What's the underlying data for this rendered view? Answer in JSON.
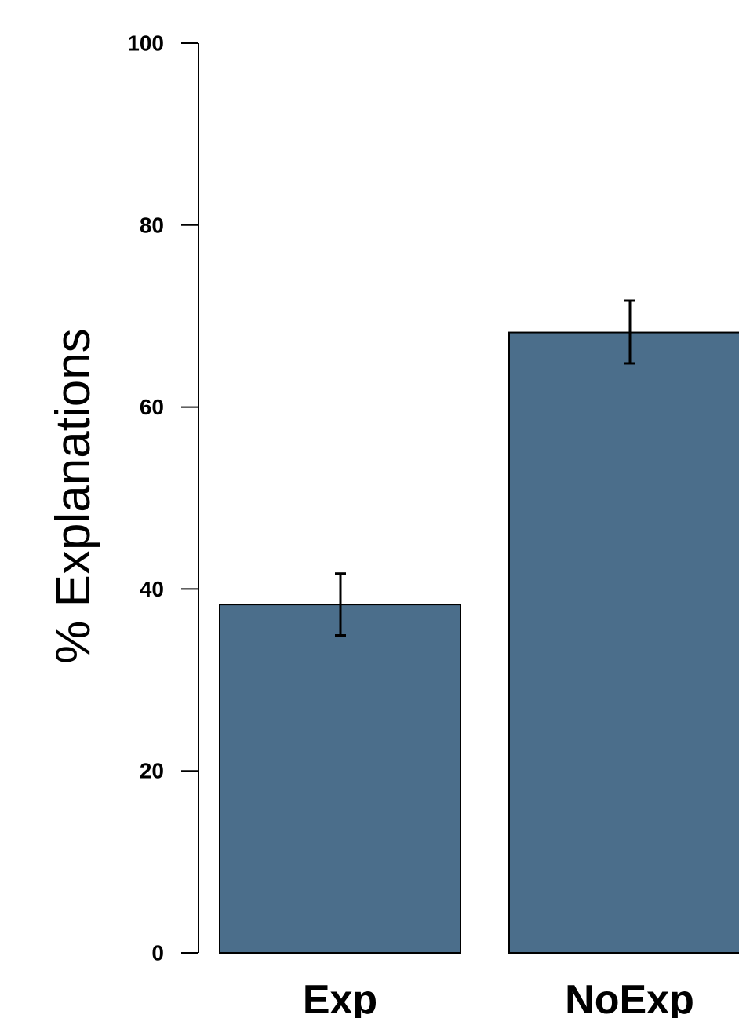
{
  "chart_data": {
    "type": "bar",
    "title": "",
    "xlabel": "",
    "ylabel": "% Explanations",
    "categories": [
      "Exp",
      "NoExp"
    ],
    "values": [
      38.3,
      68.2
    ],
    "error_bars": [
      {
        "low": 34.9,
        "high": 41.7
      },
      {
        "low": 64.8,
        "high": 71.7
      }
    ],
    "ylim": [
      0,
      100
    ],
    "yticks": [
      0,
      20,
      40,
      60,
      80,
      100
    ],
    "ytick_labels": [
      "0",
      "20",
      "40",
      "60",
      "80",
      "100"
    ],
    "bar_color": "#4b6e8b",
    "edge_color": "#000000",
    "grid": false,
    "legend": "none"
  }
}
